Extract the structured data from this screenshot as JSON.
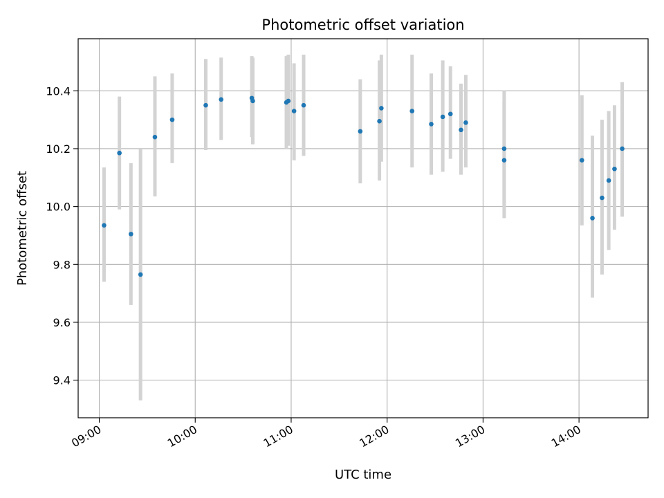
{
  "chart_data": {
    "type": "scatter",
    "title": "Photometric offset variation",
    "xlabel": "UTC time",
    "ylabel": "Photometric offset",
    "x_unit": "hours (UTC)",
    "xlim": [
      8.78,
      14.72
    ],
    "ylim": [
      9.27,
      10.58
    ],
    "xticks": [
      {
        "value": 9,
        "label": "09:00"
      },
      {
        "value": 10,
        "label": "10:00"
      },
      {
        "value": 11,
        "label": "11:00"
      },
      {
        "value": 12,
        "label": "12:00"
      },
      {
        "value": 13,
        "label": "13:00"
      },
      {
        "value": 14,
        "label": "14:00"
      }
    ],
    "yticks": [
      {
        "value": 9.4,
        "label": "9.4"
      },
      {
        "value": 9.6,
        "label": "9.6"
      },
      {
        "value": 9.8,
        "label": "9.8"
      },
      {
        "value": 10.0,
        "label": "10.0"
      },
      {
        "value": 10.2,
        "label": "10.2"
      },
      {
        "value": 10.4,
        "label": "10.4"
      }
    ],
    "grid": true,
    "point_color": "#1f77b4",
    "errorbar_color": "#d3d3d3",
    "series": [
      {
        "points": [
          {
            "x": 9.05,
            "y": 9.935,
            "lo": 9.74,
            "hi": 10.135
          },
          {
            "x": 9.21,
            "y": 10.185,
            "lo": 9.99,
            "hi": 10.38
          },
          {
            "x": 9.33,
            "y": 9.905,
            "lo": 9.66,
            "hi": 10.15
          },
          {
            "x": 9.43,
            "y": 9.765,
            "lo": 9.33,
            "hi": 10.2
          },
          {
            "x": 9.58,
            "y": 10.24,
            "lo": 10.035,
            "hi": 10.45
          },
          {
            "x": 9.76,
            "y": 10.3,
            "lo": 10.15,
            "hi": 10.46
          },
          {
            "x": 10.11,
            "y": 10.35,
            "lo": 10.195,
            "hi": 10.51
          },
          {
            "x": 10.27,
            "y": 10.37,
            "lo": 10.23,
            "hi": 10.515
          },
          {
            "x": 10.59,
            "y": 10.375,
            "lo": 10.24,
            "hi": 10.52
          },
          {
            "x": 10.6,
            "y": 10.365,
            "lo": 10.215,
            "hi": 10.515
          },
          {
            "x": 10.95,
            "y": 10.36,
            "lo": 10.2,
            "hi": 10.52
          },
          {
            "x": 10.97,
            "y": 10.365,
            "lo": 10.21,
            "hi": 10.525
          },
          {
            "x": 11.03,
            "y": 10.33,
            "lo": 10.16,
            "hi": 10.495
          },
          {
            "x": 11.13,
            "y": 10.35,
            "lo": 10.175,
            "hi": 10.525
          },
          {
            "x": 11.72,
            "y": 10.26,
            "lo": 10.08,
            "hi": 10.44
          },
          {
            "x": 11.92,
            "y": 10.295,
            "lo": 10.09,
            "hi": 10.505
          },
          {
            "x": 11.94,
            "y": 10.34,
            "lo": 10.155,
            "hi": 10.525
          },
          {
            "x": 12.26,
            "y": 10.33,
            "lo": 10.135,
            "hi": 10.525
          },
          {
            "x": 12.46,
            "y": 10.285,
            "lo": 10.11,
            "hi": 10.46
          },
          {
            "x": 12.58,
            "y": 10.31,
            "lo": 10.12,
            "hi": 10.505
          },
          {
            "x": 12.66,
            "y": 10.32,
            "lo": 10.165,
            "hi": 10.485
          },
          {
            "x": 12.77,
            "y": 10.265,
            "lo": 10.11,
            "hi": 10.425
          },
          {
            "x": 12.82,
            "y": 10.29,
            "lo": 10.135,
            "hi": 10.455
          },
          {
            "x": 13.22,
            "y": 10.2,
            "lo": 10.0,
            "hi": 10.4
          },
          {
            "x": 13.22,
            "y": 10.16,
            "lo": 9.96,
            "hi": 10.365
          },
          {
            "x": 14.03,
            "y": 10.16,
            "lo": 9.935,
            "hi": 10.385
          },
          {
            "x": 14.14,
            "y": 9.96,
            "lo": 9.685,
            "hi": 10.245
          },
          {
            "x": 14.24,
            "y": 10.03,
            "lo": 9.765,
            "hi": 10.3
          },
          {
            "x": 14.31,
            "y": 10.09,
            "lo": 9.85,
            "hi": 10.33
          },
          {
            "x": 14.37,
            "y": 10.13,
            "lo": 9.92,
            "hi": 10.35
          },
          {
            "x": 14.45,
            "y": 10.2,
            "lo": 9.965,
            "hi": 10.43
          }
        ]
      }
    ]
  }
}
